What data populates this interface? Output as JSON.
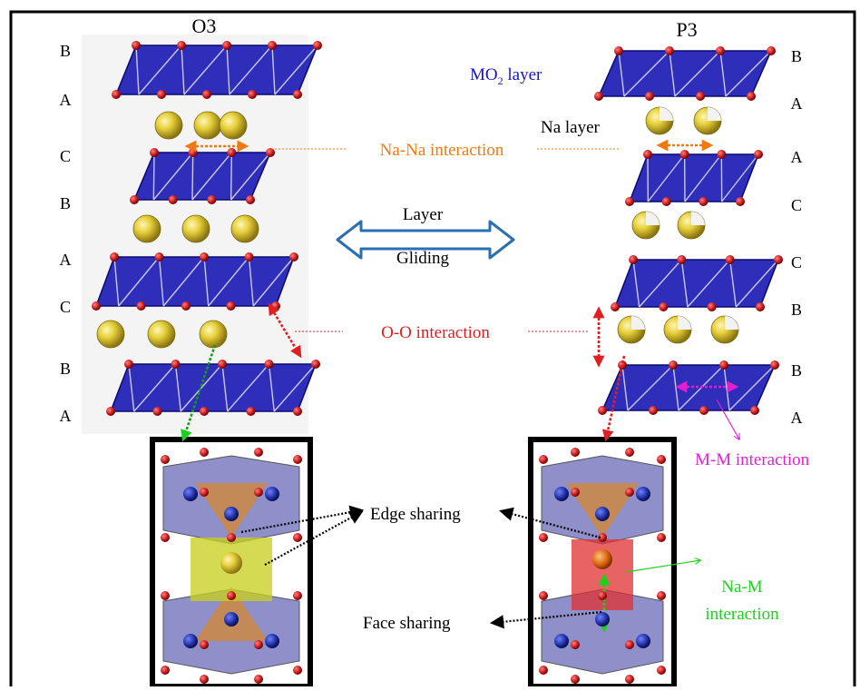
{
  "titles": {
    "left": "O3",
    "right": "P3"
  },
  "o3_stack_letters": [
    "B",
    "A",
    "C",
    "B",
    "A",
    "C",
    "B",
    "A"
  ],
  "p3_stack_letters": [
    "B",
    "A",
    "A",
    "C",
    "C",
    "B",
    "B",
    "A"
  ],
  "labels": {
    "mo2_main": "MO",
    "mo2_sub": "2",
    "mo2_rest": " layer",
    "na_layer": "Na layer",
    "na_na": "Na-Na interaction",
    "layer": "Layer",
    "gliding": "Gliding",
    "o_o": "O-O interaction",
    "m_m": "M-M interaction",
    "edge_sharing": "Edge sharing",
    "face_sharing": "Face sharing",
    "na_m_1": "Na-M",
    "na_m_2": "interaction"
  },
  "colors": {
    "layer_fill": "#1c1cb4",
    "oxygen": "#cc2222",
    "sodium": "#e6cf3a",
    "na_na": "#f07a10",
    "o_o": "#e02020",
    "m_m": "#e020d0",
    "na_m": "#1ed01e",
    "arrow_blue": "#2a6fb0",
    "mo2_text": "#1515c8"
  }
}
